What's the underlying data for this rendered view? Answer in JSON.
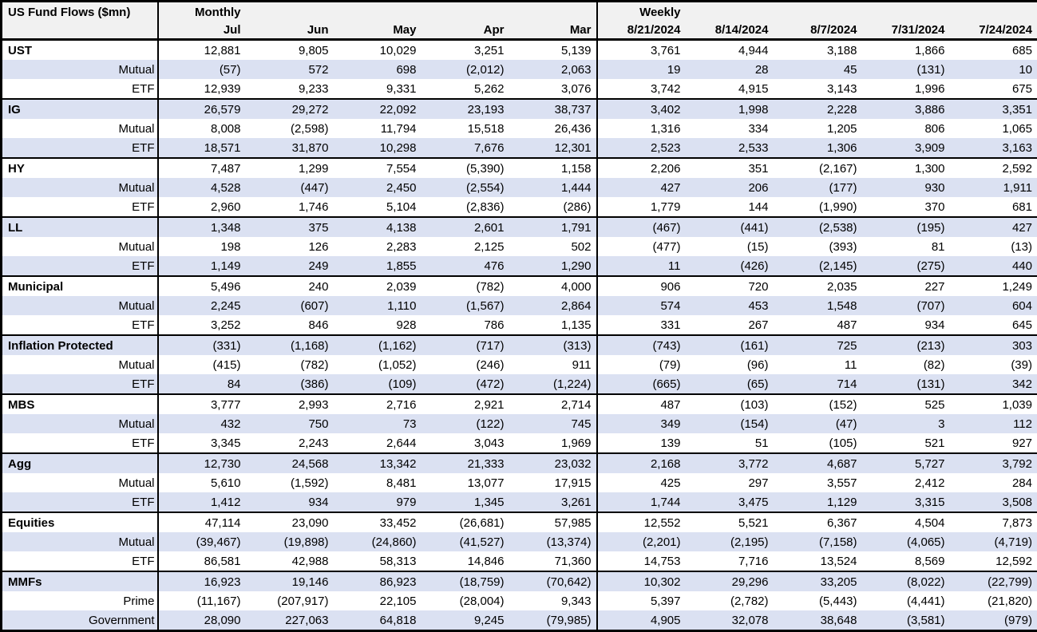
{
  "header": {
    "title": "US Fund Flows ($mn)",
    "monthly_label": "Monthly",
    "weekly_label": "Weekly",
    "monthly_columns": [
      "Jul",
      "Jun",
      "May",
      "Apr",
      "Mar"
    ],
    "weekly_columns": [
      "8/21/2024",
      "8/14/2024",
      "8/7/2024",
      "7/31/2024",
      "7/24/2024"
    ]
  },
  "colors": {
    "row_alt": "#dbe1f2",
    "header_bg": "#f1f1f1",
    "border": "#000000"
  },
  "chart_data": {
    "type": "table",
    "title": "US Fund Flows ($mn)",
    "column_groups": [
      "Monthly",
      "Weekly"
    ],
    "columns": [
      "Jul",
      "Jun",
      "May",
      "Apr",
      "Mar",
      "8/21/2024",
      "8/14/2024",
      "8/7/2024",
      "7/31/2024",
      "7/24/2024"
    ],
    "groups": [
      {
        "name": "UST",
        "rows": [
          {
            "label": "UST",
            "is_category": true,
            "values": [
              "12,881",
              "9,805",
              "10,029",
              "3,251",
              "5,139",
              "3,761",
              "4,944",
              "3,188",
              "1,866",
              "685"
            ]
          },
          {
            "label": "Mutual",
            "values": [
              "(57)",
              "572",
              "698",
              "(2,012)",
              "2,063",
              "19",
              "28",
              "45",
              "(131)",
              "10"
            ]
          },
          {
            "label": "ETF",
            "values": [
              "12,939",
              "9,233",
              "9,331",
              "5,262",
              "3,076",
              "3,742",
              "4,915",
              "3,143",
              "1,996",
              "675"
            ]
          }
        ]
      },
      {
        "name": "IG",
        "rows": [
          {
            "label": "IG",
            "is_category": true,
            "values": [
              "26,579",
              "29,272",
              "22,092",
              "23,193",
              "38,737",
              "3,402",
              "1,998",
              "2,228",
              "3,886",
              "3,351"
            ]
          },
          {
            "label": "Mutual",
            "values": [
              "8,008",
              "(2,598)",
              "11,794",
              "15,518",
              "26,436",
              "1,316",
              "334",
              "1,205",
              "806",
              "1,065"
            ]
          },
          {
            "label": "ETF",
            "values": [
              "18,571",
              "31,870",
              "10,298",
              "7,676",
              "12,301",
              "2,523",
              "2,533",
              "1,306",
              "3,909",
              "3,163"
            ]
          }
        ]
      },
      {
        "name": "HY",
        "rows": [
          {
            "label": "HY",
            "is_category": true,
            "values": [
              "7,487",
              "1,299",
              "7,554",
              "(5,390)",
              "1,158",
              "2,206",
              "351",
              "(2,167)",
              "1,300",
              "2,592"
            ]
          },
          {
            "label": "Mutual",
            "values": [
              "4,528",
              "(447)",
              "2,450",
              "(2,554)",
              "1,444",
              "427",
              "206",
              "(177)",
              "930",
              "1,911"
            ]
          },
          {
            "label": "ETF",
            "values": [
              "2,960",
              "1,746",
              "5,104",
              "(2,836)",
              "(286)",
              "1,779",
              "144",
              "(1,990)",
              "370",
              "681"
            ]
          }
        ]
      },
      {
        "name": "LL",
        "rows": [
          {
            "label": "LL",
            "is_category": true,
            "values": [
              "1,348",
              "375",
              "4,138",
              "2,601",
              "1,791",
              "(467)",
              "(441)",
              "(2,538)",
              "(195)",
              "427"
            ]
          },
          {
            "label": "Mutual",
            "values": [
              "198",
              "126",
              "2,283",
              "2,125",
              "502",
              "(477)",
              "(15)",
              "(393)",
              "81",
              "(13)"
            ]
          },
          {
            "label": "ETF",
            "values": [
              "1,149",
              "249",
              "1,855",
              "476",
              "1,290",
              "11",
              "(426)",
              "(2,145)",
              "(275)",
              "440"
            ]
          }
        ]
      },
      {
        "name": "Municipal",
        "rows": [
          {
            "label": "Municipal",
            "is_category": true,
            "values": [
              "5,496",
              "240",
              "2,039",
              "(782)",
              "4,000",
              "906",
              "720",
              "2,035",
              "227",
              "1,249"
            ]
          },
          {
            "label": "Mutual",
            "values": [
              "2,245",
              "(607)",
              "1,110",
              "(1,567)",
              "2,864",
              "574",
              "453",
              "1,548",
              "(707)",
              "604"
            ]
          },
          {
            "label": "ETF",
            "values": [
              "3,252",
              "846",
              "928",
              "786",
              "1,135",
              "331",
              "267",
              "487",
              "934",
              "645"
            ]
          }
        ]
      },
      {
        "name": "Inflation Protected",
        "rows": [
          {
            "label": "Inflation Protected",
            "is_category": true,
            "values": [
              "(331)",
              "(1,168)",
              "(1,162)",
              "(717)",
              "(313)",
              "(743)",
              "(161)",
              "725",
              "(213)",
              "303"
            ]
          },
          {
            "label": "Mutual",
            "values": [
              "(415)",
              "(782)",
              "(1,052)",
              "(246)",
              "911",
              "(79)",
              "(96)",
              "11",
              "(82)",
              "(39)"
            ]
          },
          {
            "label": "ETF",
            "values": [
              "84",
              "(386)",
              "(109)",
              "(472)",
              "(1,224)",
              "(665)",
              "(65)",
              "714",
              "(131)",
              "342"
            ]
          }
        ]
      },
      {
        "name": "MBS",
        "rows": [
          {
            "label": "MBS",
            "is_category": true,
            "values": [
              "3,777",
              "2,993",
              "2,716",
              "2,921",
              "2,714",
              "487",
              "(103)",
              "(152)",
              "525",
              "1,039"
            ]
          },
          {
            "label": "Mutual",
            "values": [
              "432",
              "750",
              "73",
              "(122)",
              "745",
              "349",
              "(154)",
              "(47)",
              "3",
              "112"
            ]
          },
          {
            "label": "ETF",
            "values": [
              "3,345",
              "2,243",
              "2,644",
              "3,043",
              "1,969",
              "139",
              "51",
              "(105)",
              "521",
              "927"
            ]
          }
        ]
      },
      {
        "name": "Agg",
        "rows": [
          {
            "label": "Agg",
            "is_category": true,
            "values": [
              "12,730",
              "24,568",
              "13,342",
              "21,333",
              "23,032",
              "2,168",
              "3,772",
              "4,687",
              "5,727",
              "3,792"
            ]
          },
          {
            "label": "Mutual",
            "values": [
              "5,610",
              "(1,592)",
              "8,481",
              "13,077",
              "17,915",
              "425",
              "297",
              "3,557",
              "2,412",
              "284"
            ]
          },
          {
            "label": "ETF",
            "values": [
              "1,412",
              "934",
              "979",
              "1,345",
              "3,261",
              "1,744",
              "3,475",
              "1,129",
              "3,315",
              "3,508"
            ]
          }
        ]
      },
      {
        "name": "Equities",
        "rows": [
          {
            "label": "Equities",
            "is_category": true,
            "values": [
              "47,114",
              "23,090",
              "33,452",
              "(26,681)",
              "57,985",
              "12,552",
              "5,521",
              "6,367",
              "4,504",
              "7,873"
            ]
          },
          {
            "label": "Mutual",
            "values": [
              "(39,467)",
              "(19,898)",
              "(24,860)",
              "(41,527)",
              "(13,374)",
              "(2,201)",
              "(2,195)",
              "(7,158)",
              "(4,065)",
              "(4,719)"
            ]
          },
          {
            "label": "ETF",
            "values": [
              "86,581",
              "42,988",
              "58,313",
              "14,846",
              "71,360",
              "14,753",
              "7,716",
              "13,524",
              "8,569",
              "12,592"
            ]
          }
        ]
      },
      {
        "name": "MMFs",
        "rows": [
          {
            "label": "MMFs",
            "is_category": true,
            "values": [
              "16,923",
              "19,146",
              "86,923",
              "(18,759)",
              "(70,642)",
              "10,302",
              "29,296",
              "33,205",
              "(8,022)",
              "(22,799)"
            ]
          },
          {
            "label": "Prime",
            "values": [
              "(11,167)",
              "(207,917)",
              "22,105",
              "(28,004)",
              "9,343",
              "5,397",
              "(2,782)",
              "(5,443)",
              "(4,441)",
              "(21,820)"
            ]
          },
          {
            "label": "Government",
            "values": [
              "28,090",
              "227,063",
              "64,818",
              "9,245",
              "(79,985)",
              "4,905",
              "32,078",
              "38,648",
              "(3,581)",
              "(979)"
            ]
          }
        ]
      }
    ]
  }
}
